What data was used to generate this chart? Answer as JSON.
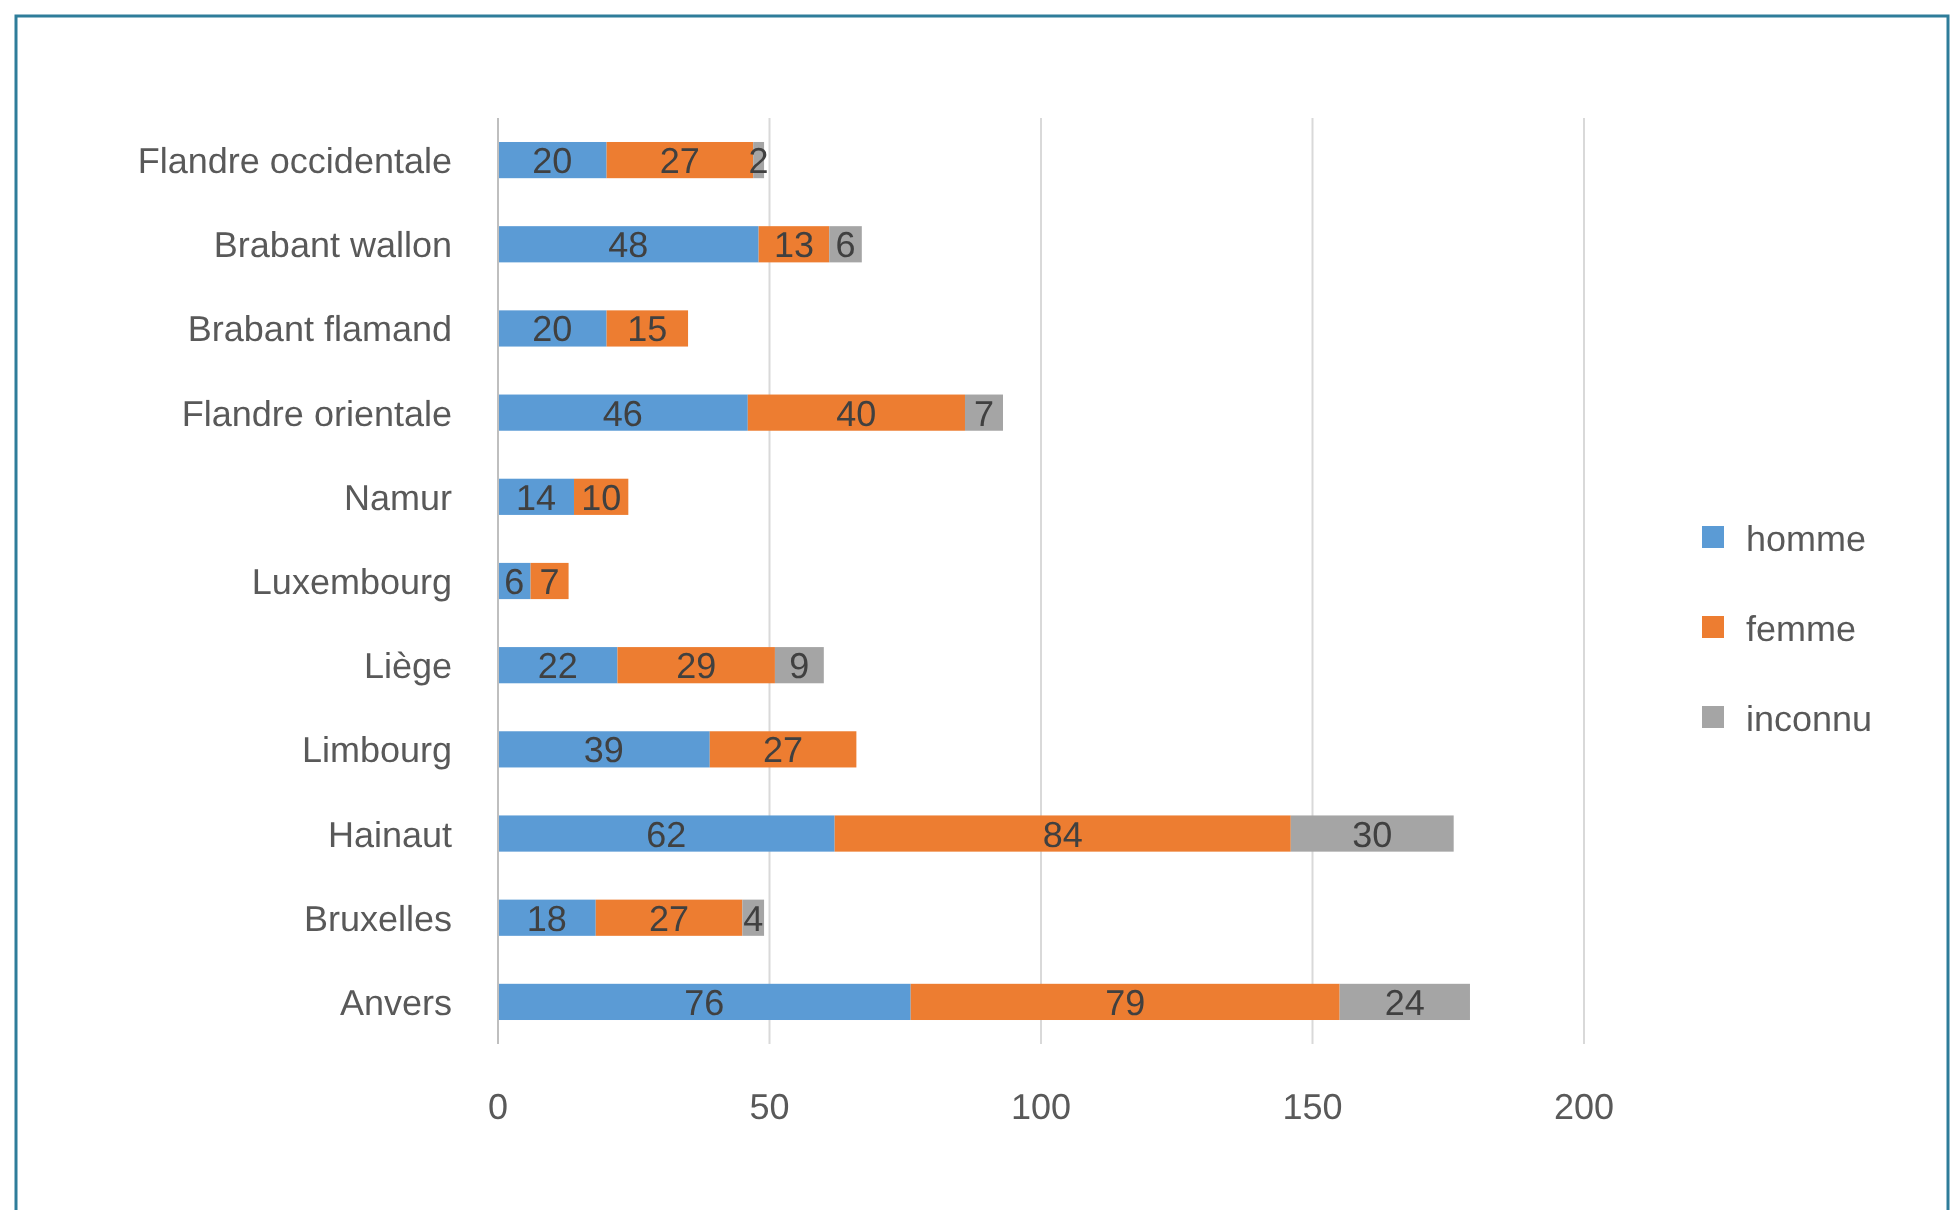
{
  "chart_data": {
    "type": "bar",
    "orientation": "horizontal",
    "stacked": true,
    "categories": [
      "Flandre occidentale",
      "Brabant wallon",
      "Brabant flamand",
      "Flandre orientale",
      "Namur",
      "Luxembourg",
      "Liège",
      "Limbourg",
      "Hainaut",
      "Bruxelles",
      "Anvers"
    ],
    "series": [
      {
        "name": "homme",
        "color": "#5b9bd5",
        "values": [
          20,
          48,
          20,
          46,
          14,
          6,
          22,
          39,
          62,
          18,
          76
        ]
      },
      {
        "name": "femme",
        "color": "#ed7d31",
        "values": [
          27,
          13,
          15,
          40,
          10,
          7,
          29,
          27,
          84,
          27,
          79
        ]
      },
      {
        "name": "inconnu",
        "color": "#a5a5a5",
        "values": [
          2,
          6,
          null,
          7,
          null,
          null,
          9,
          null,
          30,
          4,
          24
        ]
      }
    ],
    "xlim": [
      0,
      200
    ],
    "xticks": [
      0,
      50,
      100,
      150,
      200
    ],
    "grid": "x",
    "legend": "right",
    "data_labels": true
  }
}
